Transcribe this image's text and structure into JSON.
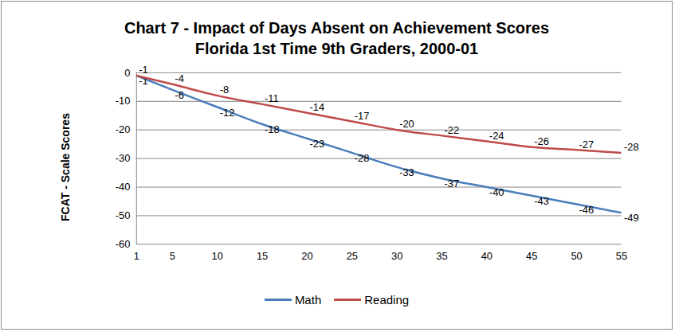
{
  "chart_data": {
    "type": "line",
    "title": "Chart 7 - Impact of Days Absent on Achievement Scores",
    "subtitle": "Florida 1st Time 9th Graders, 2000-01",
    "y_label": "FCAT - Scale Scores",
    "x": [
      1,
      5,
      10,
      15,
      20,
      25,
      30,
      35,
      40,
      45,
      50,
      55
    ],
    "series": [
      {
        "name": "Math",
        "color": "#4a7ebb",
        "values": [
          -1,
          -6,
          -12,
          -18,
          -23,
          -28,
          -33,
          -37,
          -40,
          -43,
          -46,
          -49
        ]
      },
      {
        "name": "Reading",
        "color": "#be4b48",
        "values": [
          -1,
          -4,
          -8,
          -11,
          -14,
          -17,
          -20,
          -22,
          -24,
          -26,
          -27,
          -28
        ]
      }
    ],
    "xlim": [
      1,
      55
    ],
    "xticks": [
      1,
      5,
      10,
      15,
      20,
      25,
      30,
      35,
      40,
      45,
      50,
      55
    ],
    "ylim": [
      -60,
      0
    ],
    "yticks": [
      -60,
      -50,
      -40,
      -30,
      -20,
      -10,
      0
    ],
    "grid": true,
    "legend": "bottom",
    "data_labels": true
  }
}
